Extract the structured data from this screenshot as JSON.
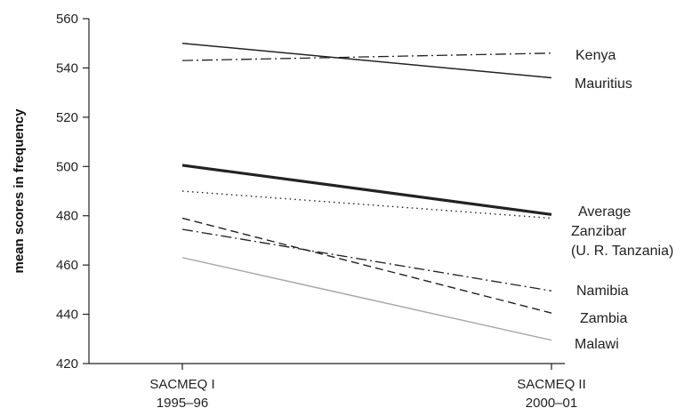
{
  "chart_data": {
    "type": "line",
    "title": "",
    "xlabel": "",
    "ylabel": "mean scores in frequency",
    "ylim": [
      420,
      560
    ],
    "yticks": [
      420,
      440,
      460,
      480,
      500,
      520,
      540,
      560
    ],
    "grid": false,
    "legend": "direct labels at line ends",
    "categories": [
      {
        "line1": "SACMEQ I",
        "line2": "1995–96"
      },
      {
        "line1": "SACMEQ II",
        "line2": "2000–01"
      }
    ],
    "series": [
      {
        "name": "Kenya",
        "values": [
          543,
          546
        ],
        "style": "dashdot",
        "color": "#222222"
      },
      {
        "name": "Mauritius",
        "values": [
          550,
          536
        ],
        "style": "solid",
        "color": "#222222"
      },
      {
        "name": "Average",
        "values": [
          500.5,
          480.5
        ],
        "style": "solid-thick",
        "color": "#222222"
      },
      {
        "name": "Zanzibar (U. R. Tanzania)",
        "label_lines": [
          "Zanzibar",
          "(U. R. Tanzania)"
        ],
        "values": [
          490,
          479
        ],
        "style": "dotted",
        "color": "#222222"
      },
      {
        "name": "Namibia",
        "values": [
          474.5,
          449.5
        ],
        "style": "dashdot",
        "color": "#222222"
      },
      {
        "name": "Zambia",
        "values": [
          479,
          440.5
        ],
        "style": "dashed",
        "color": "#222222"
      },
      {
        "name": "Malawi",
        "values": [
          463,
          429.5
        ],
        "style": "solid",
        "color": "#aaaaaa"
      }
    ]
  }
}
